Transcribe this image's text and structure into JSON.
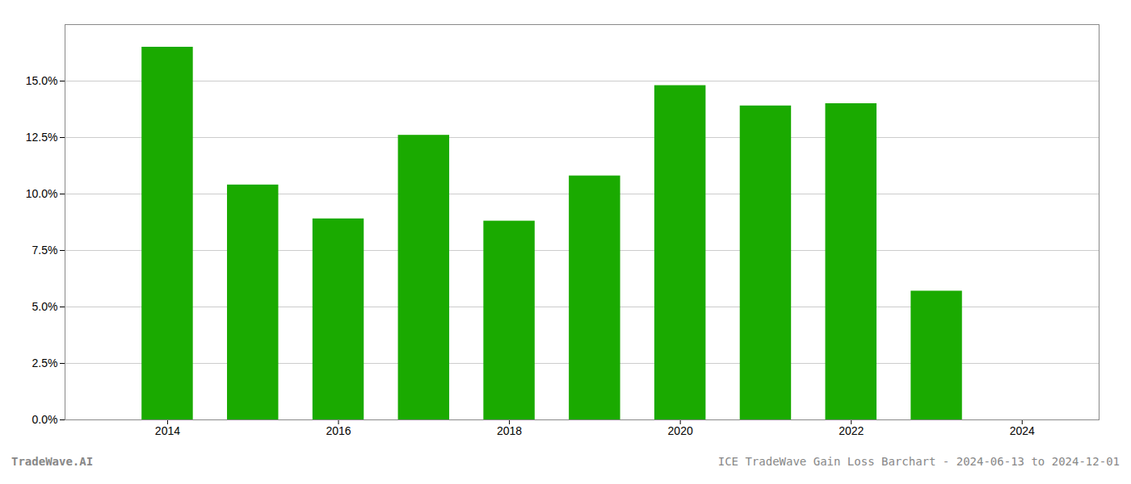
{
  "chart_data": {
    "type": "bar",
    "x": [
      2014,
      2015,
      2016,
      2017,
      2018,
      2019,
      2020,
      2021,
      2022,
      2023
    ],
    "values": [
      0.165,
      0.104,
      0.089,
      0.126,
      0.088,
      0.108,
      0.148,
      0.139,
      0.14,
      0.057
    ],
    "color": "#1aaa00",
    "xlim": [
      2012.8,
      2024.9
    ],
    "xticks": [
      2014,
      2016,
      2018,
      2020,
      2022,
      2024
    ],
    "ylim": [
      0,
      0.175
    ],
    "yticks": [
      {
        "value": 0.0,
        "label": "0.0%"
      },
      {
        "value": 0.025,
        "label": "2.5%"
      },
      {
        "value": 0.05,
        "label": "5.0%"
      },
      {
        "value": 0.075,
        "label": "7.5%"
      },
      {
        "value": 0.1,
        "label": "10.0%"
      },
      {
        "value": 0.125,
        "label": "12.5%"
      },
      {
        "value": 0.15,
        "label": "15.0%"
      }
    ],
    "grid": true,
    "annotations": [
      "TradeWave.AI",
      "ICE TradeWave Gain Loss Barchart - 2024-06-13 to 2024-12-01"
    ]
  }
}
